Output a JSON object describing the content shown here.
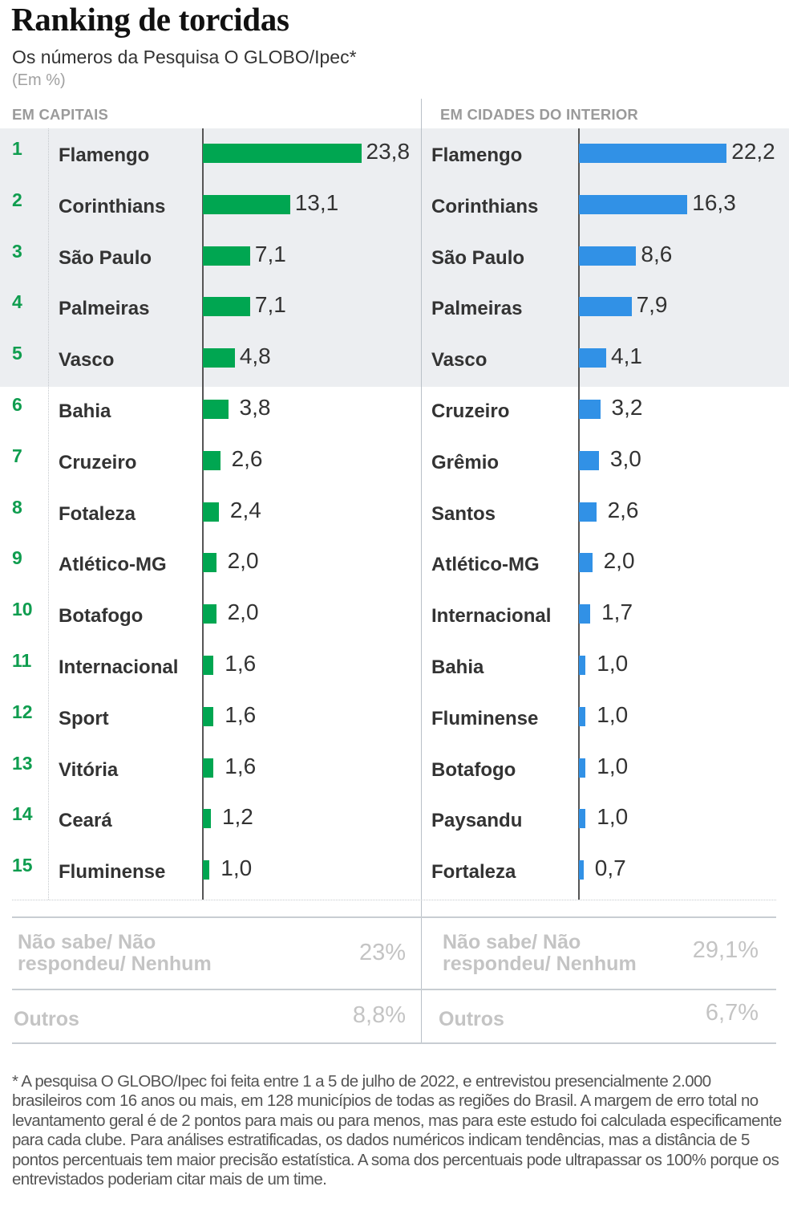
{
  "header": {
    "title": "Ranking de torcidas",
    "subtitle": "Os números da Pesquisa O GLOBO/Ipec*",
    "unit": "(Em %)"
  },
  "colors": {
    "capitais_bar": "#00a651",
    "interior_bar": "#3191e6",
    "rank_number": "#0f9d4f",
    "highlight_band": "#eceef1"
  },
  "capitais": {
    "heading": "EM CAPITAIS",
    "rows": [
      {
        "rank": "1",
        "team": "Flamengo",
        "value": "23,8"
      },
      {
        "rank": "2",
        "team": "Corinthians",
        "value": "13,1"
      },
      {
        "rank": "3",
        "team": "São Paulo",
        "value": "7,1"
      },
      {
        "rank": "4",
        "team": "Palmeiras",
        "value": "7,1"
      },
      {
        "rank": "5",
        "team": "Vasco",
        "value": "4,8"
      },
      {
        "rank": "6",
        "team": "Bahia",
        "value": "3,8"
      },
      {
        "rank": "7",
        "team": "Cruzeiro",
        "value": "2,6"
      },
      {
        "rank": "8",
        "team": "Fotaleza",
        "value": "2,4"
      },
      {
        "rank": "9",
        "team": "Atlético-MG",
        "value": "2,0"
      },
      {
        "rank": "10",
        "team": "Botafogo",
        "value": "2,0"
      },
      {
        "rank": "11",
        "team": "Internacional",
        "value": "1,6"
      },
      {
        "rank": "12",
        "team": "Sport",
        "value": "1,6"
      },
      {
        "rank": "13",
        "team": "Vitória",
        "value": "1,6"
      },
      {
        "rank": "14",
        "team": "Ceará",
        "value": "1,2"
      },
      {
        "rank": "15",
        "team": "Fluminense",
        "value": "1,0"
      }
    ],
    "summary": [
      {
        "label": "Não sabe/ Não respondeu/ Nenhum",
        "value": "23%"
      },
      {
        "label": "Outros",
        "value": "8,8%"
      }
    ]
  },
  "interior": {
    "heading": "EM CIDADES DO INTERIOR",
    "rows": [
      {
        "rank": "1",
        "team": "Flamengo",
        "value": "22,2"
      },
      {
        "rank": "2",
        "team": "Corinthians",
        "value": "16,3"
      },
      {
        "rank": "3",
        "team": "São Paulo",
        "value": "8,6"
      },
      {
        "rank": "4",
        "team": "Palmeiras",
        "value": "7,9"
      },
      {
        "rank": "5",
        "team": "Vasco",
        "value": "4,1"
      },
      {
        "rank": "6",
        "team": "Cruzeiro",
        "value": "3,2"
      },
      {
        "rank": "7",
        "team": "Grêmio",
        "value": "3,0"
      },
      {
        "rank": "8",
        "team": "Santos",
        "value": "2,6"
      },
      {
        "rank": "9",
        "team": "Atlético-MG",
        "value": "2,0"
      },
      {
        "rank": "10",
        "team": "Internacional",
        "value": "1,7"
      },
      {
        "rank": "11",
        "team": "Bahia",
        "value": "1,0"
      },
      {
        "rank": "12",
        "team": "Fluminense",
        "value": "1,0"
      },
      {
        "rank": "13",
        "team": "Botafogo",
        "value": "1,0"
      },
      {
        "rank": "14",
        "team": "Paysandu",
        "value": "1,0"
      },
      {
        "rank": "15",
        "team": "Fortaleza",
        "value": "0,7"
      }
    ],
    "summary": [
      {
        "label": "Não sabe/ Não respondeu/ Nenhum",
        "value": "29,1%"
      },
      {
        "label": "Outros",
        "value": "6,7%"
      }
    ]
  },
  "footnote": "* A pesquisa O GLOBO/Ipec foi feita entre 1 a 5 de julho de 2022, e entrevistou presencialmente 2.000 brasileiros com 16 anos ou mais, em 128 municípios de todas as regiões do Brasil. A margem de erro total no levantamento geral é de 2 pontos para mais ou para menos, mas para este estudo foi calculada especificamente para cada clube. Para análises estratificadas, os dados numéricos indicam tendências, mas a distância de 5 pontos percentuais tem maior precisão estatística. A soma dos percentuais pode ultrapassar os 100% porque os entrevistados poderiam citar mais de um time.",
  "chart_data": [
    {
      "type": "bar",
      "orientation": "horizontal",
      "title": "Ranking de torcidas — Em capitais",
      "subtitle": "Os números da Pesquisa O GLOBO/Ipec*",
      "xlabel": "",
      "ylabel": "",
      "unit": "%",
      "categories": [
        "Flamengo",
        "Corinthians",
        "São Paulo",
        "Palmeiras",
        "Vasco",
        "Bahia",
        "Cruzeiro",
        "Fotaleza",
        "Atlético-MG",
        "Botafogo",
        "Internacional",
        "Sport",
        "Vitória",
        "Ceará",
        "Fluminense"
      ],
      "values": [
        23.8,
        13.1,
        7.1,
        7.1,
        4.8,
        3.8,
        2.6,
        2.4,
        2.0,
        2.0,
        1.6,
        1.6,
        1.6,
        1.2,
        1.0
      ],
      "extra": {
        "Não sabe/ Não respondeu/ Nenhum": 23.0,
        "Outros": 8.8
      },
      "color": "#00a651",
      "grid": false,
      "legend": "none",
      "highlight_top_n": 5
    },
    {
      "type": "bar",
      "orientation": "horizontal",
      "title": "Ranking de torcidas — Em cidades do interior",
      "subtitle": "Os números da Pesquisa O GLOBO/Ipec*",
      "xlabel": "",
      "ylabel": "",
      "unit": "%",
      "categories": [
        "Flamengo",
        "Corinthians",
        "São Paulo",
        "Palmeiras",
        "Vasco",
        "Cruzeiro",
        "Grêmio",
        "Santos",
        "Atlético-MG",
        "Internacional",
        "Bahia",
        "Fluminense",
        "Botafogo",
        "Paysandu",
        "Fortaleza"
      ],
      "values": [
        22.2,
        16.3,
        8.6,
        7.9,
        4.1,
        3.2,
        3.0,
        2.6,
        2.0,
        1.7,
        1.0,
        1.0,
        1.0,
        1.0,
        0.7
      ],
      "extra": {
        "Não sabe/ Não respondeu/ Nenhum": 29.1,
        "Outros": 6.7
      },
      "color": "#3191e6",
      "grid": false,
      "legend": "none",
      "highlight_top_n": 5
    }
  ]
}
